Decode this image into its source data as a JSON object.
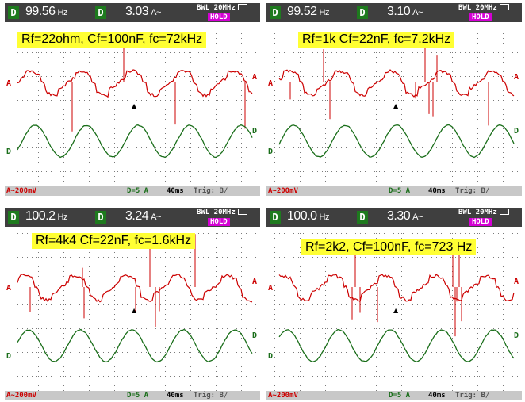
{
  "colors": {
    "header_bg": "#3f3f3f",
    "footer_bg": "#c8c8c8",
    "trace_a": "#cc0000",
    "trace_d": "#1a6e1a",
    "annotation_bg": "#ffff33",
    "hold_bg": "#d400d4",
    "channel_box": "#1e7a1e"
  },
  "panels": [
    {
      "chan_a": "D",
      "freq": "99.56",
      "freq_unit": "Hz",
      "chan_b": "D",
      "volt": "3.03",
      "volt_unit": "A~",
      "bwl": "BWL 20MHz",
      "hold": "HOLD",
      "annotation": "Rf=22ohm, Cf=100nF, fc=72kHz",
      "footer": {
        "a_scale": "A~200mV",
        "d_scale": "D=5 A",
        "time": "40ms",
        "trig": "Trig: B/"
      }
    },
    {
      "chan_a": "D",
      "freq": "99.52",
      "freq_unit": "Hz",
      "chan_b": "D",
      "volt": "3.10",
      "volt_unit": "A~",
      "bwl": "BWL 20MHz",
      "hold": "HOLD",
      "annotation": "Rf=1k Cf=22nF, fc=7.2kHz",
      "footer": {
        "a_scale": "A~200mV",
        "d_scale": "D=5 A",
        "time": "40ms",
        "trig": "Trig: B/"
      }
    },
    {
      "chan_a": "D",
      "freq": "100.2",
      "freq_unit": "Hz",
      "chan_b": "D",
      "volt": "3.24",
      "volt_unit": "A~",
      "bwl": "BWL 20MHz",
      "hold": "HOLD",
      "annotation": "Rf=4k4 Cf=22nF, fc=1.6kHz",
      "footer": {
        "a_scale": "A~200mV",
        "d_scale": "D=5 A",
        "time": "40ms",
        "trig": "Trig: B/"
      }
    },
    {
      "chan_a": "D",
      "freq": "100.0",
      "freq_unit": "Hz",
      "chan_b": "D",
      "volt": "3.30",
      "volt_unit": "A~",
      "bwl": "BWL 20MHz",
      "hold": "HOLD",
      "annotation": "Rf=2k2, Cf=100nF, fc=723 Hz",
      "footer": {
        "a_scale": "A~200mV",
        "d_scale": "D=5 A",
        "time": "40ms",
        "trig": "Trig: B/"
      }
    }
  ],
  "markers": {
    "a": "A",
    "d": "D",
    "trigger": "▲"
  }
}
